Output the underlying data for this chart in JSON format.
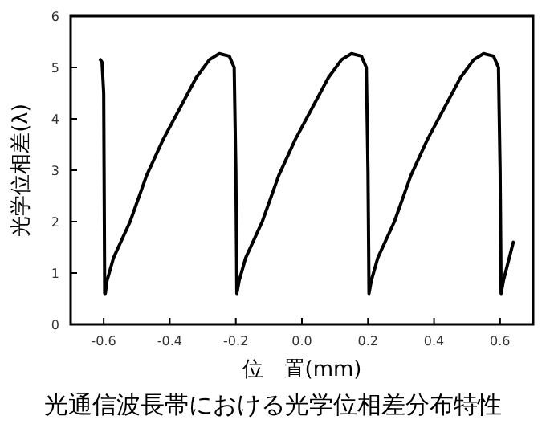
{
  "chart_data": {
    "type": "line",
    "title": "光通信波長帯における光学位相差分布特性",
    "xlabel": "位　置(mm)",
    "ylabel": "光学位相差(λ)",
    "xlim": [
      -0.7,
      0.7
    ],
    "ylim": [
      0,
      6
    ],
    "xticks": [
      -0.6,
      -0.4,
      -0.2,
      {
        "value": 0,
        "label": "0.0"
      },
      0.2,
      0.4,
      0.6
    ],
    "yticks": [
      0,
      1,
      2,
      3,
      4,
      5,
      6
    ],
    "series": [
      {
        "color": "#000000",
        "x": [
          -0.61,
          -0.605,
          -0.6,
          -0.598,
          -0.597,
          -0.595,
          -0.59,
          -0.57,
          -0.52,
          -0.47,
          -0.42,
          -0.37,
          -0.32,
          -0.28,
          -0.25,
          -0.22,
          -0.205,
          -0.2,
          -0.198,
          -0.197,
          -0.19,
          -0.17,
          -0.12,
          -0.07,
          -0.02,
          0.03,
          0.08,
          0.12,
          0.15,
          0.18,
          0.195,
          0.2,
          0.202,
          0.203,
          0.21,
          0.23,
          0.28,
          0.33,
          0.38,
          0.43,
          0.48,
          0.52,
          0.55,
          0.58,
          0.595,
          0.6,
          0.602,
          0.603,
          0.61,
          0.64
        ],
        "values": [
          5.15,
          5.1,
          4.5,
          2.0,
          0.6,
          0.6,
          0.85,
          1.3,
          2.0,
          2.9,
          3.6,
          4.2,
          4.8,
          5.15,
          5.27,
          5.22,
          5.0,
          3.0,
          1.5,
          0.6,
          0.85,
          1.3,
          2.0,
          2.9,
          3.6,
          4.2,
          4.8,
          5.15,
          5.27,
          5.22,
          5.0,
          3.0,
          1.5,
          0.6,
          0.85,
          1.3,
          2.0,
          2.9,
          3.6,
          4.2,
          4.8,
          5.15,
          5.27,
          5.22,
          5.0,
          3.0,
          1.5,
          0.6,
          0.85,
          1.6
        ]
      }
    ]
  }
}
